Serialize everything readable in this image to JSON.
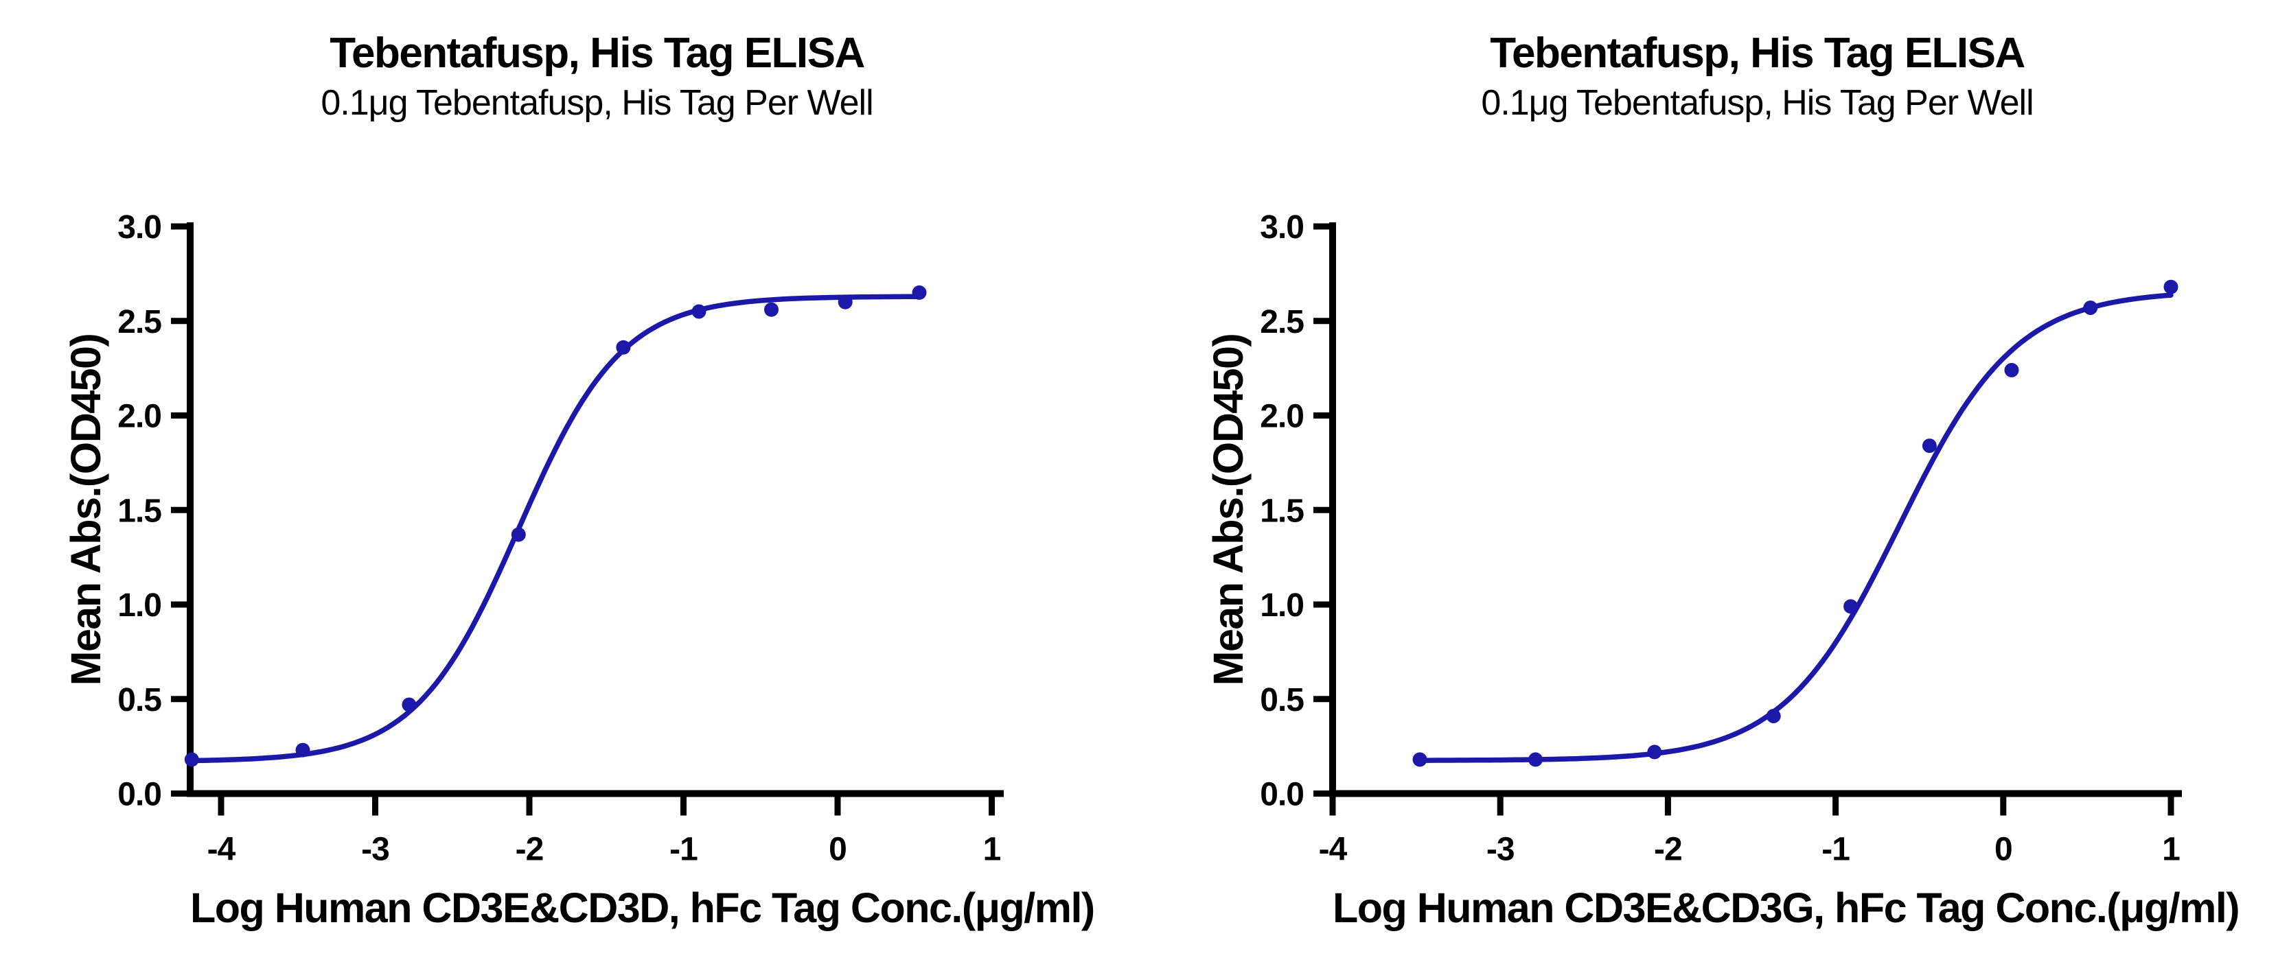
{
  "figure": {
    "background": "#ffffff",
    "text_color": "#000000",
    "axis_color": "#000000",
    "accent_color": "#1c19a9"
  },
  "chart_data": [
    {
      "type": "scatter",
      "title": "Tebentafusp, His Tag ELISA",
      "subtitle": "0.1μg Tebentafusp, His Tag Per Well",
      "xlabel": "Log Human CD3E&CD3D, hFc Tag Conc.(μg/ml)",
      "ylabel": "Mean Abs.(OD450)",
      "x": [
        -4.19,
        -3.47,
        -2.78,
        -2.07,
        -1.39,
        -0.9,
        -0.43,
        0.05,
        0.53
      ],
      "y": [
        0.18,
        0.23,
        0.47,
        1.37,
        2.36,
        2.55,
        2.56,
        2.6,
        2.65
      ],
      "fit_curve": {
        "model": "4PL",
        "bottom": 0.17,
        "top": 2.63,
        "log_ec50": -2.07,
        "hill_slope": 1.3
      },
      "marker_color": "#1c19a9",
      "line_color": "#1c19a9",
      "xlim": [
        -4.35,
        1.1
      ],
      "ylim": [
        0,
        3
      ],
      "x_tick_values": [
        -4,
        -3,
        -2,
        -1,
        0,
        1
      ],
      "x_tick_labels": [
        "-4",
        "-3",
        "-2",
        "-1",
        "0",
        "1"
      ],
      "y_tick_values": [
        0,
        0.5,
        1,
        1.5,
        2,
        2.5,
        3
      ],
      "y_tick_labels": [
        "0.0",
        "0.5",
        "1.0",
        "1.5",
        "2.0",
        "2.5",
        "3.0"
      ],
      "grid": false,
      "legend": null
    },
    {
      "type": "scatter",
      "title": "Tebentafusp, His Tag ELISA",
      "subtitle": "0.1μg Tebentafusp, His Tag Per Well",
      "xlabel": "Log Human CD3E&CD3G, hFc Tag Conc.(μg/ml)",
      "ylabel": "Mean Abs.(OD450)",
      "x": [
        -3.48,
        -2.79,
        -2.08,
        -1.37,
        -0.91,
        -0.44,
        0.05,
        0.52,
        1.0
      ],
      "y": [
        0.18,
        0.18,
        0.22,
        0.41,
        0.99,
        1.84,
        2.24,
        2.57,
        2.68
      ],
      "fit_curve": {
        "model": "4PL",
        "bottom": 0.175,
        "top": 2.66,
        "log_ec50": -0.62,
        "hill_slope": 1.25
      },
      "marker_color": "#1c19a9",
      "line_color": "#1c19a9",
      "xlim": [
        -4.05,
        1.1
      ],
      "ylim": [
        0,
        3
      ],
      "x_tick_values": [
        -4,
        -3,
        -2,
        -1,
        0,
        1
      ],
      "x_tick_labels": [
        "-4",
        "-3",
        "-2",
        "-1",
        "0",
        "1"
      ],
      "y_tick_values": [
        0,
        0.5,
        1,
        1.5,
        2,
        2.5,
        3
      ],
      "y_tick_labels": [
        "0.0",
        "0.5",
        "1.0",
        "1.5",
        "2.0",
        "2.5",
        "3.0"
      ],
      "grid": false,
      "legend": null
    }
  ]
}
